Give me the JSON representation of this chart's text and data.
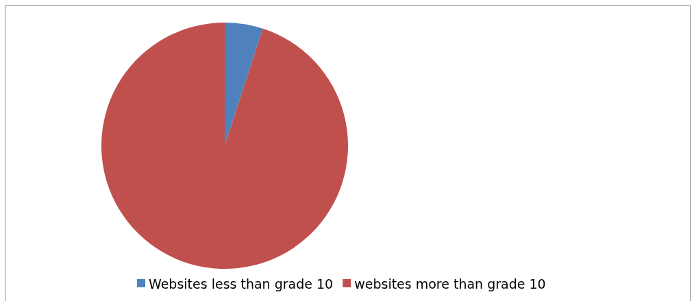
{
  "chart_data": {
    "type": "pie",
    "categories": [
      "Websites less than grade 10",
      "websites more than grade 10"
    ],
    "values": [
      5,
      95
    ],
    "colors": [
      "#4f81bd",
      "#c0504d"
    ],
    "legend": "bottom"
  }
}
